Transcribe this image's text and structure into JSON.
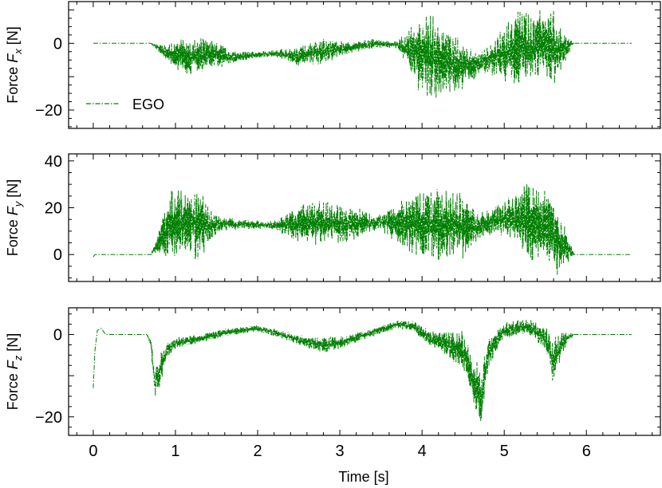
{
  "figure": {
    "xlabel": "Time [s]"
  },
  "chart_data": [
    {
      "type": "line",
      "panel": "top",
      "ylabel_prefix": "Force ",
      "ylabel_symbol": "F",
      "ylabel_sub": "x",
      "ylabel_suffix": " [N]",
      "xlim": [
        -0.3,
        6.9
      ],
      "ylim": [
        -25.5,
        12.5
      ],
      "xticks": [
        0,
        1,
        2,
        3,
        4,
        5,
        6
      ],
      "yticks": [
        -20,
        0
      ],
      "ytick_labels": [
        "−20",
        "0"
      ],
      "legend": {
        "placement": "lower-left",
        "entries": [
          "EGO"
        ]
      },
      "series": [
        {
          "name": "EGO",
          "color": "#008000",
          "style": "dashdot",
          "x": [
            0.0,
            0.7,
            0.9,
            1.1,
            1.4,
            1.7,
            2.0,
            2.2,
            2.5,
            2.8,
            3.1,
            3.4,
            3.7,
            3.95,
            4.1,
            4.3,
            4.5,
            4.7,
            4.9,
            5.1,
            5.3,
            5.5,
            5.6,
            5.7,
            5.85,
            6.55
          ],
          "y": [
            0,
            0,
            -3,
            -4,
            -3.5,
            -4,
            -3.5,
            -3,
            -4,
            -2.5,
            -1.5,
            0,
            -0.5,
            -3,
            -4,
            -6,
            -7.5,
            -6,
            -4,
            -2,
            -1,
            -0.5,
            -2,
            -2,
            0,
            0
          ],
          "amplitude": [
            0,
            0,
            2.5,
            6,
            5,
            2,
            1,
            1,
            3,
            4,
            2,
            1.5,
            1,
            11,
            13,
            11,
            8,
            3,
            6,
            11,
            12,
            10,
            13,
            6,
            0,
            0
          ]
        }
      ]
    },
    {
      "type": "line",
      "panel": "middle",
      "ylabel_prefix": "Force ",
      "ylabel_symbol": "F",
      "ylabel_sub": "y",
      "ylabel_suffix": " [N]",
      "xlim": [
        -0.3,
        6.9
      ],
      "ylim": [
        -11.5,
        43
      ],
      "xticks": [
        0,
        1,
        2,
        3,
        4,
        5,
        6
      ],
      "yticks": [
        0,
        20,
        40
      ],
      "ytick_labels": [
        "0",
        "20",
        "40"
      ],
      "series": [
        {
          "name": "EGO",
          "color": "#008000",
          "style": "dashdot",
          "x": [
            0.0,
            0.02,
            0.7,
            0.8,
            0.95,
            1.1,
            1.3,
            1.5,
            1.8,
            2.2,
            2.5,
            2.8,
            3.1,
            3.5,
            3.95,
            4.1,
            4.3,
            4.5,
            4.7,
            4.9,
            5.1,
            5.3,
            5.5,
            5.65,
            5.75,
            5.85,
            6.55
          ],
          "y": [
            -1,
            0,
            0,
            6,
            12,
            13,
            12,
            13,
            13,
            12.5,
            13,
            13.5,
            13,
            14,
            13,
            12,
            13,
            12,
            12,
            15,
            16,
            14,
            13,
            5,
            3,
            0,
            0
          ],
          "amplitude": [
            0,
            0,
            0,
            5,
            16,
            15,
            15,
            4,
            2,
            2,
            8,
            10,
            8,
            4,
            15,
            16,
            16,
            14,
            6,
            6,
            10,
            18,
            16,
            15,
            8,
            0,
            0
          ]
        }
      ]
    },
    {
      "type": "line",
      "panel": "bottom",
      "ylabel_prefix": "Force ",
      "ylabel_symbol": "F",
      "ylabel_sub": "z",
      "ylabel_suffix": " [N]",
      "xlim": [
        -0.3,
        6.9
      ],
      "ylim": [
        -24.5,
        6.5
      ],
      "xticks": [
        0,
        1,
        2,
        3,
        4,
        5,
        6
      ],
      "xtick_labels": [
        "0",
        "1",
        "2",
        "3",
        "4",
        "5",
        "6"
      ],
      "yticks": [
        -20,
        0
      ],
      "ytick_labels": [
        "−20",
        "0"
      ],
      "series": [
        {
          "name": "EGO",
          "color": "#008000",
          "style": "dashdot",
          "x": [
            0.0,
            0.02,
            0.05,
            0.1,
            0.15,
            0.3,
            0.65,
            0.7,
            0.75,
            0.82,
            0.9,
            1.0,
            1.3,
            1.6,
            2.0,
            2.3,
            2.6,
            2.8,
            3.0,
            3.4,
            3.7,
            3.9,
            4.1,
            4.3,
            4.5,
            4.65,
            4.72,
            4.8,
            4.9,
            5.0,
            5.3,
            5.5,
            5.6,
            5.7,
            5.8,
            5.85,
            6.55
          ],
          "y": [
            -13,
            -4,
            1,
            1.5,
            0,
            0,
            0,
            -2,
            -12,
            -8,
            -4,
            -2,
            -1,
            0.5,
            1.5,
            0,
            -2,
            -2.5,
            -2,
            0.5,
            2.5,
            2,
            -1,
            -2.5,
            -4,
            -12,
            -16,
            -5,
            -2,
            1,
            2,
            -1,
            -7,
            -2,
            -0.5,
            0,
            0
          ],
          "amplitude": [
            0,
            0,
            0,
            0,
            0,
            0,
            0,
            1,
            4,
            4,
            2,
            1.5,
            1,
            1,
            0.8,
            1,
            1.5,
            2,
            1.5,
            1,
            1,
            1.5,
            2,
            3,
            5,
            7,
            7,
            4,
            3,
            2,
            2,
            3,
            6,
            3,
            1,
            0,
            0
          ]
        }
      ]
    }
  ]
}
